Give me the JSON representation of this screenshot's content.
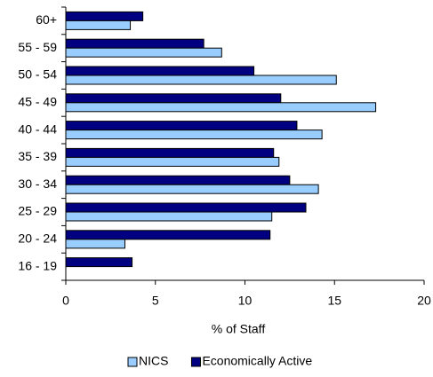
{
  "chart_data": {
    "type": "bar",
    "orientation": "horizontal",
    "categories": [
      "60+",
      "55 - 59",
      "50 - 54",
      "45 - 49",
      "40 - 44",
      "35 - 39",
      "30 - 34",
      "25 - 29",
      "20 - 24",
      "16 - 19"
    ],
    "series": [
      {
        "name": "NICS",
        "color": "#99ccff",
        "values": [
          3.6,
          8.7,
          15.1,
          17.3,
          14.3,
          11.9,
          14.1,
          11.5,
          3.3,
          0
        ]
      },
      {
        "name": "Economically Active",
        "color": "#000080",
        "values": [
          4.3,
          7.7,
          10.5,
          12.0,
          12.9,
          11.6,
          12.5,
          13.4,
          11.4,
          3.7
        ]
      }
    ],
    "x_label": "% of Staff",
    "xlim": [
      0,
      20
    ],
    "xticks": [
      0,
      5,
      10,
      15,
      20
    ],
    "grid": false,
    "legend": "bottom"
  }
}
